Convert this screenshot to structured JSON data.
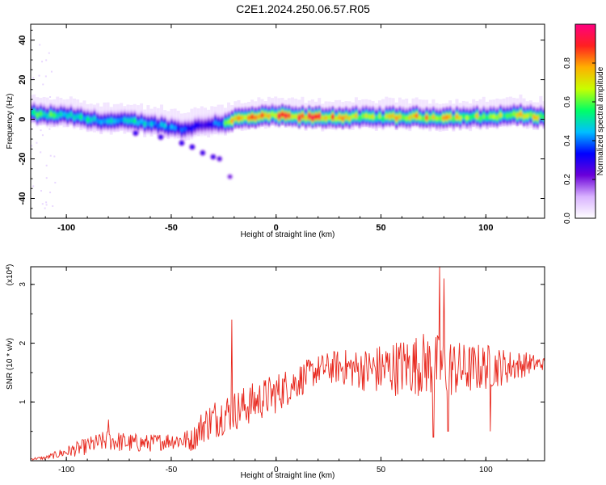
{
  "title": "C2E1.2024.250.06.57.R05",
  "chart_data": [
    {
      "type": "heatmap",
      "title": "C2E1.2024.250.06.57.R05",
      "xlabel": "Height of straight line (km)",
      "ylabel": "Frequency (Hz)",
      "xlim": [
        -117,
        128
      ],
      "ylim": [
        -50,
        48
      ],
      "xticks": [
        -100,
        -50,
        0,
        50,
        100
      ],
      "yticks": [
        -40,
        -20,
        0,
        20,
        40
      ],
      "colorbar": {
        "label": "Normalized spectral amplitude",
        "range": [
          0,
          1
        ],
        "ticks": [
          0.0,
          0.2,
          0.4,
          0.6,
          0.8
        ],
        "tick_labels": [
          "0.0",
          "0.2",
          "0.4",
          "0.6",
          "0.8"
        ],
        "colors": [
          "#ffffff",
          "#d9b3ff",
          "#6a00d9",
          "#0000ff",
          "#00bfff",
          "#00ff66",
          "#c8ff00",
          "#ffb000",
          "#ff2020",
          "#ff0080"
        ]
      },
      "ridge": {
        "x": [
          -117,
          -110,
          -100,
          -90,
          -80,
          -70,
          -60,
          -50,
          -45,
          -40,
          -35,
          -30,
          -25,
          -20,
          -10,
          0,
          10,
          20,
          30,
          40,
          50,
          60,
          70,
          80,
          90,
          100,
          110,
          120,
          128
        ],
        "y": [
          3,
          2,
          2,
          0,
          -1,
          -1,
          -2,
          -4,
          -5,
          -4,
          -3,
          -2,
          -2,
          0,
          1,
          2,
          1,
          1,
          1,
          1,
          1,
          1,
          1,
          1,
          1,
          1,
          2,
          2,
          1
        ],
        "peak_amplitude": [
          0.55,
          0.6,
          0.55,
          0.55,
          0.5,
          0.5,
          0.45,
          0.45,
          0.4,
          0.35,
          0.35,
          0.4,
          0.5,
          0.85,
          0.9,
          0.85,
          0.9,
          0.9,
          0.8,
          0.7,
          0.7,
          0.8,
          0.8,
          0.75,
          0.75,
          0.7,
          0.65,
          0.75,
          0.7
        ]
      },
      "branch": {
        "x": [
          -67,
          -55,
          -45,
          -40,
          -35,
          -30,
          -27,
          -22
        ],
        "y": [
          -7,
          -9,
          -12,
          -14,
          -17,
          -19,
          -20,
          -29
        ],
        "amplitude": [
          0.3,
          0.3,
          0.3,
          0.3,
          0.28,
          0.28,
          0.25,
          0.2
        ]
      }
    },
    {
      "type": "line",
      "xlabel": "Height of straight line (km)",
      "ylabel": "SNR (10 * v/v)",
      "y_multiplier": "(x10",
      "y_multiplier_exp": "4",
      "y_multiplier_close": ")",
      "xlim": [
        -117,
        128
      ],
      "ylim": [
        0,
        3.3
      ],
      "xticks": [
        -100,
        -50,
        0,
        50,
        100
      ],
      "yticks": [
        1,
        2,
        3
      ],
      "line_color": "#e8281e",
      "envelope": {
        "x": [
          -117,
          -110,
          -100,
          -90,
          -80,
          -70,
          -60,
          -50,
          -40,
          -35,
          -30,
          -25,
          -20,
          -10,
          0,
          10,
          20,
          30,
          40,
          50,
          60,
          70,
          80,
          90,
          100,
          110,
          120,
          128
        ],
        "mean": [
          0.03,
          0.05,
          0.15,
          0.25,
          0.35,
          0.3,
          0.3,
          0.35,
          0.35,
          0.6,
          0.7,
          0.8,
          0.85,
          1.0,
          1.15,
          1.35,
          1.55,
          1.6,
          1.55,
          1.55,
          1.6,
          1.65,
          1.6,
          1.55,
          1.6,
          1.6,
          1.65,
          1.65
        ],
        "amp": [
          0.02,
          0.03,
          0.1,
          0.15,
          0.18,
          0.17,
          0.15,
          0.15,
          0.2,
          0.3,
          0.35,
          0.35,
          0.35,
          0.35,
          0.35,
          0.3,
          0.25,
          0.3,
          0.35,
          0.45,
          0.5,
          0.55,
          0.55,
          0.45,
          0.4,
          0.3,
          0.2,
          0.1
        ]
      },
      "spikes": [
        {
          "x": -80,
          "y": 0.7
        },
        {
          "x": -21,
          "y": 2.4
        },
        {
          "x": 75,
          "y": 0.4
        },
        {
          "x": 78,
          "y": 3.3
        },
        {
          "x": 80,
          "y": 3.1
        },
        {
          "x": 82,
          "y": 0.5
        },
        {
          "x": 102,
          "y": 0.5
        }
      ]
    }
  ]
}
